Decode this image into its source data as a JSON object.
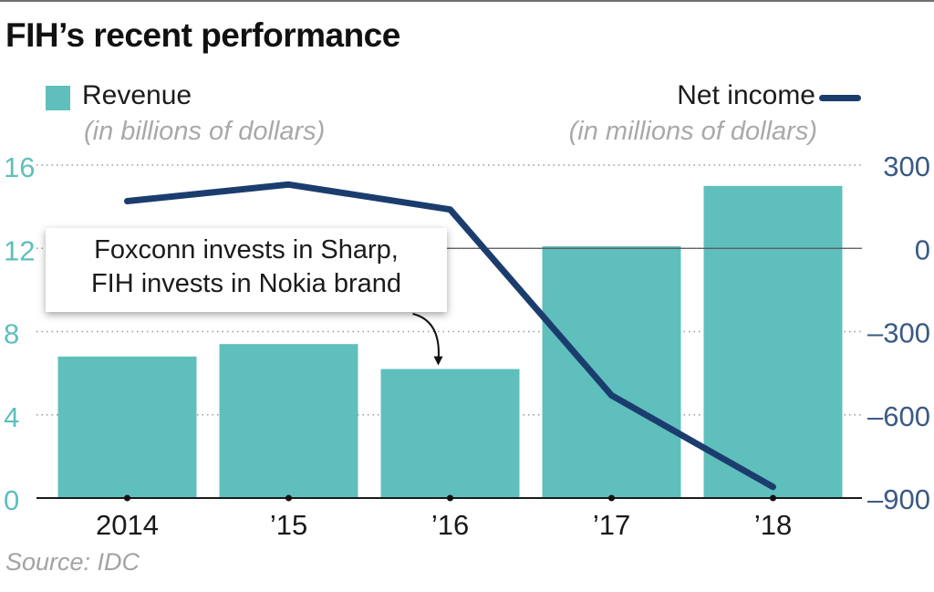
{
  "title": "FIH’s recent performance",
  "legend": {
    "revenue_label": "Revenue",
    "revenue_sub": "(in billions of dollars)",
    "net_label": "Net income",
    "net_sub": "(in millions of dollars)"
  },
  "annotation": {
    "line1": "Foxconn invests in Sharp,",
    "line2": "FIH invests in Nokia brand",
    "category": "’16"
  },
  "source": "Source: IDC",
  "colors": {
    "revenue": "#5fbfbd",
    "net_income": "#1b3d6e",
    "left_axis": "#5fbfbd",
    "right_axis": "#3b5a85",
    "grid": "#9a9a9a",
    "baseline": "#1a1a1a"
  },
  "chart_data": {
    "type": "bar",
    "categories": [
      "2014",
      "’15",
      "’16",
      "’17",
      "’18"
    ],
    "series": [
      {
        "name": "Revenue",
        "chart_type": "bar",
        "axis": "left",
        "values": [
          6.8,
          7.4,
          6.2,
          12.1,
          15.0
        ]
      },
      {
        "name": "Net income",
        "chart_type": "line",
        "axis": "right",
        "values": [
          170,
          230,
          140,
          -530,
          -860
        ]
      }
    ],
    "left_axis": {
      "label": "Revenue (in billions of dollars)",
      "ylim": [
        0,
        16
      ],
      "ticks": [
        0,
        4,
        8,
        12,
        16
      ],
      "tick_labels": [
        "0",
        "4",
        "8",
        "12",
        "16"
      ]
    },
    "right_axis": {
      "label": "Net income (in millions of dollars)",
      "ylim": [
        -900,
        300
      ],
      "ticks": [
        -900,
        -600,
        -300,
        0,
        300
      ],
      "tick_labels": [
        "–900",
        "–600",
        "–300",
        "0",
        "300"
      ]
    },
    "grid": "dotted horizontal",
    "legend_position": "top"
  }
}
